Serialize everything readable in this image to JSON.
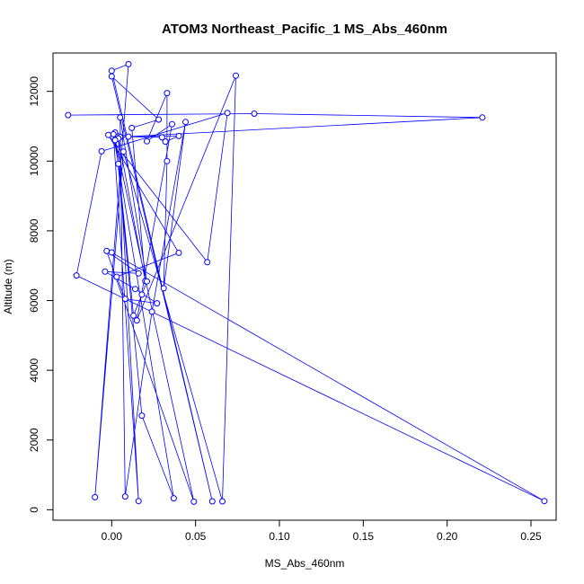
{
  "chart_data": {
    "type": "line",
    "title": "ATOM3 Northeast_Pacific_1 MS_Abs_460nm",
    "xlabel": "MS_Abs_460nm",
    "ylabel": "Altitude (m)",
    "xlim": [
      -0.035,
      0.265
    ],
    "ylim": [
      -300,
      13100
    ],
    "xticks": [
      0.0,
      0.05,
      0.1,
      0.15,
      0.2,
      0.25
    ],
    "xtick_labels": [
      "0.00",
      "0.05",
      "0.10",
      "0.15",
      "0.20",
      "0.25"
    ],
    "yticks": [
      0,
      2000,
      4000,
      6000,
      8000,
      10000,
      12000
    ],
    "ytick_labels": [
      "0",
      "2000",
      "4000",
      "6000",
      "8000",
      "10000",
      "12000"
    ],
    "grid": false,
    "legend": "none",
    "marker": "open-circle",
    "series": [
      {
        "color": "#0000ff",
        "points": [
          [
            -0.026,
            11320
          ],
          [
            0.085,
            11360
          ],
          [
            0.221,
            11250
          ],
          [
            0.005,
            10690
          ],
          [
            0.04,
            10720
          ],
          [
            0.032,
            10560
          ],
          [
            0.03,
            10680
          ],
          [
            0.01,
            10700
          ],
          [
            0.002,
            10820
          ],
          [
            0.018,
            2700
          ],
          [
            0.037,
            330
          ],
          [
            0.001,
            10770
          ],
          [
            0.016,
            250
          ],
          [
            0.004,
            10650
          ],
          [
            0.02,
            6560
          ],
          [
            0.012,
            10950
          ],
          [
            0.028,
            11190
          ],
          [
            0.0,
            12430
          ],
          [
            0.06,
            240
          ],
          [
            0.0,
            12590
          ],
          [
            0.01,
            12780
          ],
          [
            -0.01,
            360
          ],
          [
            0.007,
            10270
          ],
          [
            0.066,
            240
          ],
          [
            0.074,
            12450
          ],
          [
            0.015,
            5430
          ],
          [
            0.036,
            11060
          ],
          [
            0.021,
            10570
          ],
          [
            0.033,
            11950
          ],
          [
            0.033,
            10000
          ],
          [
            0.031,
            6350
          ],
          [
            0.044,
            11120
          ],
          [
            0.024,
            5680
          ],
          [
            0.008,
            380
          ],
          [
            0.005,
            11250
          ],
          [
            0.021,
            6550
          ],
          [
            0.018,
            6170
          ],
          [
            0.013,
            5570
          ],
          [
            0.004,
            9920
          ],
          [
            0.002,
            10600
          ],
          [
            0.049,
            230
          ],
          [
            -0.003,
            7420
          ],
          [
            0.016,
            6780
          ],
          [
            -0.004,
            6830
          ],
          [
            0.014,
            6330
          ],
          [
            0.027,
            5920
          ],
          [
            0.008,
            6050
          ],
          [
            0.003,
            6680
          ],
          [
            0.04,
            7370
          ],
          [
            -0.002,
            10750
          ],
          [
            0.057,
            7100
          ],
          [
            0.069,
            11380
          ],
          [
            -0.006,
            10280
          ],
          [
            -0.021,
            6720
          ],
          [
            0.258,
            250
          ],
          [
            0.0,
            7380
          ]
        ]
      }
    ]
  }
}
